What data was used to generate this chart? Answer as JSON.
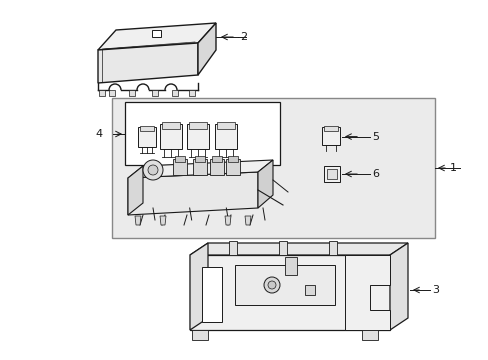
{
  "bg_color": "#ffffff",
  "line_color": "#1a1a1a",
  "fill_light": "#f5f5f5",
  "fill_mid": "#e8e8e8",
  "fill_dark": "#d8d8d8",
  "dot_fill": "#e0e0e0"
}
